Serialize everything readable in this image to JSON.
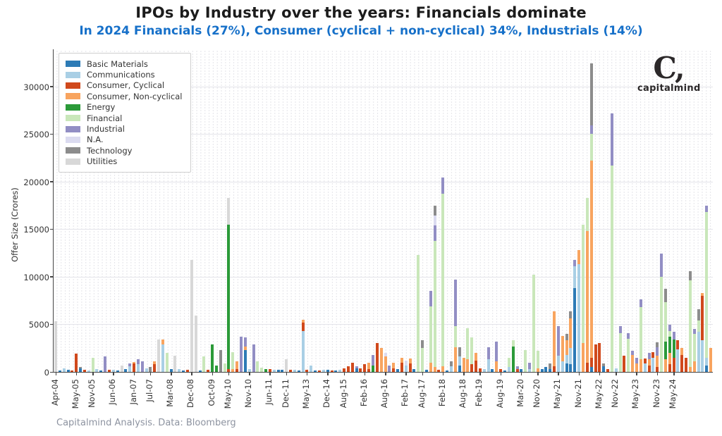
{
  "header": {
    "title": "IPOs by Industry over the years: Financials dominate",
    "subtitle": "In 2024 Financials (27%), Consumer (cyclical + non-cyclical) 34%, Industrials (14%)"
  },
  "logo": {
    "mark": "C,",
    "word": "capitalmind"
  },
  "footer": {
    "credit": "Capitalmind Analysis. Data: Bloomberg"
  },
  "chart_data": {
    "type": "bar",
    "stacked": true,
    "title": "IPOs by Industry over the years: Financials dominate",
    "subtitle": "In 2024 Financials (27%), Consumer (cyclical + non-cyclical) 34%, Industrials (14%)",
    "xlabel": "",
    "ylabel": "Offer Size (Crores)",
    "ylim": [
      0,
      33900
    ],
    "yticks": [
      0,
      5000,
      10000,
      15000,
      20000,
      25000,
      30000
    ],
    "grid": "dotted",
    "legend_position": "upper-left",
    "legend": [
      {
        "key": "BM",
        "label": "Basic Materials",
        "color": "#2d7bb6"
      },
      {
        "key": "CM",
        "label": "Communications",
        "color": "#a9cfe5"
      },
      {
        "key": "CC",
        "label": "Consumer, Cyclical",
        "color": "#d0491c"
      },
      {
        "key": "CN",
        "label": "Consumer, Non-cyclical",
        "color": "#f8a45f"
      },
      {
        "key": "EN",
        "label": "Energy",
        "color": "#2b9a39"
      },
      {
        "key": "FN",
        "label": "Financial",
        "color": "#c9e7ba"
      },
      {
        "key": "IN",
        "label": "Industrial",
        "color": "#928ec4"
      },
      {
        "key": "NA",
        "label": "N.A.",
        "color": "#dbdbf0"
      },
      {
        "key": "TC",
        "label": "Technology",
        "color": "#8c8c8c"
      },
      {
        "key": "UT",
        "label": "Utilities",
        "color": "#d8d8d8"
      }
    ],
    "n_slots": 160,
    "x_tick_labels": [
      "Apr-04",
      "May-05",
      "Nov-05",
      "Jun-06",
      "Jan-07",
      "Jul-07",
      "Mar-08",
      "Dec-08",
      "Oct-09",
      "May-10",
      "Nov-10",
      "Jun-11",
      "Dec-11",
      "May-13",
      "Dec-14",
      "Aug-15",
      "Feb-16",
      "Aug-16",
      "Feb-17",
      "Aug-17",
      "Feb-18",
      "Aug-18",
      "Feb-19",
      "Aug-19",
      "Mar-20",
      "Nov-20",
      "May-21",
      "Nov-21",
      "May-22",
      "Nov-22",
      "May-23",
      "Nov-23",
      "May-24"
    ],
    "x_tick_indices": [
      0,
      5,
      9,
      14,
      19,
      23,
      28,
      33,
      38,
      42,
      47,
      52,
      56,
      61,
      66,
      70,
      75,
      80,
      85,
      89,
      94,
      99,
      103,
      108,
      113,
      117,
      122,
      127,
      132,
      136,
      141,
      146,
      150
    ],
    "bars": [
      [
        [
          "UT",
          5300
        ]
      ],
      [
        [
          "BM",
          150
        ]
      ],
      [
        [
          "CM",
          400
        ]
      ],
      [
        [
          "BM",
          200
        ]
      ],
      [
        [
          "CC",
          150
        ]
      ],
      [
        [
          "CC",
          1900
        ]
      ],
      [
        [
          "BM",
          400
        ],
        [
          "TC",
          150
        ]
      ],
      [
        [
          "CC",
          200
        ]
      ],
      [
        [
          "CM",
          150
        ]
      ],
      [
        [
          "FN",
          1500
        ]
      ],
      [
        [
          "CM",
          300
        ]
      ],
      [
        [
          "BM",
          150
        ]
      ],
      [
        [
          "IN",
          1600
        ]
      ],
      [
        [
          "CC",
          250
        ]
      ],
      [
        [
          "CM",
          200
        ]
      ],
      [
        [
          "BM",
          150
        ]
      ],
      [
        [
          "UT",
          700
        ]
      ],
      [
        [
          "BM",
          300
        ]
      ],
      [
        [
          "CM",
          600
        ],
        [
          "IN",
          300
        ]
      ],
      [
        [
          "CC",
          900
        ],
        [
          "CN",
          150
        ]
      ],
      [
        [
          "CM",
          800
        ],
        [
          "IN",
          500
        ]
      ],
      [
        [
          "IN",
          1100
        ]
      ],
      [
        [
          "CM",
          400
        ]
      ],
      [
        [
          "TC",
          500
        ]
      ],
      [
        [
          "CC",
          800
        ],
        [
          "CN",
          300
        ]
      ],
      [
        [
          "UT",
          3400
        ]
      ],
      [
        [
          "CM",
          2900
        ],
        [
          "CN",
          500
        ]
      ],
      [
        [
          "FN",
          2000
        ]
      ],
      [
        [
          "BM",
          300
        ]
      ],
      [
        [
          "UT",
          1700
        ]
      ],
      [
        [
          "CM",
          300
        ]
      ],
      [
        [
          "BM",
          150
        ]
      ],
      [
        [
          "CC",
          200
        ]
      ],
      [
        [
          "UT",
          11800
        ]
      ],
      [
        [
          "UT",
          5900
        ]
      ],
      [
        [
          "BM",
          150
        ]
      ],
      [
        [
          "FN",
          1600
        ]
      ],
      [
        [
          "CC",
          200
        ]
      ],
      [
        [
          "EN",
          2900
        ]
      ],
      [
        [
          "EN",
          700
        ]
      ],
      [
        [
          "TC",
          2300
        ]
      ],
      [
        [
          "FN",
          900
        ]
      ],
      [
        [
          "CC",
          300
        ],
        [
          "EN",
          15200
        ],
        [
          "UT",
          2800
        ]
      ],
      [
        [
          "CN",
          300
        ],
        [
          "FN",
          1800
        ]
      ],
      [
        [
          "CC",
          300
        ],
        [
          "CN",
          800
        ]
      ],
      [
        [
          "IN",
          3700
        ]
      ],
      [
        [
          "BM",
          2300
        ],
        [
          "CN",
          400
        ],
        [
          "IN",
          900
        ]
      ],
      [
        [
          "CM",
          300
        ]
      ],
      [
        [
          "IN",
          2900
        ]
      ],
      [
        [
          "FN",
          1100
        ]
      ],
      [
        [
          "FN",
          450
        ]
      ],
      [
        [
          "EN",
          300
        ]
      ],
      [
        [
          "CC",
          300
        ]
      ],
      [
        [
          "CM",
          250
        ]
      ],
      [
        [
          "BM",
          200
        ]
      ],
      [
        [
          "BM",
          200
        ]
      ],
      [
        [
          "UT",
          1300
        ]
      ],
      [
        [
          "CC",
          250
        ]
      ],
      [
        [
          "CM",
          250
        ]
      ],
      [
        [
          "BM",
          150
        ]
      ],
      [
        [
          "CM",
          4300
        ],
        [
          "CC",
          900
        ],
        [
          "CN",
          300
        ]
      ],
      [
        [
          "CC",
          200
        ]
      ],
      [
        [
          "CM",
          700
        ]
      ],
      [
        [
          "BM",
          150
        ]
      ],
      [
        [
          "CC",
          150
        ]
      ],
      [
        [
          "CM",
          250
        ]
      ],
      [
        [
          "BM",
          200
        ]
      ],
      [
        [
          "CC",
          150
        ]
      ],
      [
        [
          "BM",
          150
        ]
      ],
      [
        [
          "CM",
          200
        ]
      ],
      [
        [
          "CC",
          350
        ]
      ],
      [
        [
          "CC",
          600
        ]
      ],
      [
        [
          "CC",
          1000
        ]
      ],
      [
        [
          "BM",
          400
        ],
        [
          "IN",
          200
        ]
      ],
      [
        [
          "CC",
          400
        ]
      ],
      [
        [
          "CC",
          800
        ]
      ],
      [
        [
          "CC",
          300
        ],
        [
          "CN",
          700
        ]
      ],
      [
        [
          "EN",
          700
        ],
        [
          "IN",
          1100
        ]
      ],
      [
        [
          "CC",
          3000
        ]
      ],
      [
        [
          "CN",
          2500
        ]
      ],
      [
        [
          "CN",
          1600
        ],
        [
          "NA",
          400
        ]
      ],
      [
        [
          "IN",
          700
        ]
      ],
      [
        [
          "CC",
          400
        ],
        [
          "CN",
          600
        ]
      ],
      [
        [
          "BM",
          300
        ]
      ],
      [
        [
          "CC",
          1000
        ],
        [
          "CN",
          500
        ]
      ],
      [
        [
          "CM",
          700
        ],
        [
          "NA",
          500
        ]
      ],
      [
        [
          "CC",
          900
        ],
        [
          "CN",
          500
        ]
      ],
      [
        [
          "BM",
          300
        ]
      ],
      [
        [
          "FN",
          12300
        ]
      ],
      [
        [
          "FN",
          2500
        ],
        [
          "TC",
          800
        ]
      ],
      [
        [
          "BM",
          200
        ]
      ],
      [
        [
          "CN",
          1000
        ],
        [
          "FN",
          5900
        ],
        [
          "IN",
          1600
        ]
      ],
      [
        [
          "CN",
          500
        ],
        [
          "FN",
          13300
        ],
        [
          "IN",
          1600
        ],
        [
          "NA",
          1000
        ],
        [
          "TC",
          1100
        ]
      ],
      [
        [
          "CC",
          200
        ]
      ],
      [
        [
          "CN",
          600
        ],
        [
          "FN",
          18100
        ],
        [
          "IN",
          1700
        ]
      ],
      [
        [
          "BM",
          150
        ]
      ],
      [
        [
          "CM",
          600
        ],
        [
          "TC",
          500
        ]
      ],
      [
        [
          "CN",
          2600
        ],
        [
          "FN",
          2200
        ],
        [
          "IN",
          4900
        ]
      ],
      [
        [
          "BM",
          700
        ],
        [
          "CM",
          900
        ],
        [
          "TC",
          1000
        ]
      ],
      [
        [
          "CN",
          1500
        ]
      ],
      [
        [
          "CN",
          1300
        ],
        [
          "FN",
          3300
        ]
      ],
      [
        [
          "CC",
          800
        ],
        [
          "FN",
          2800
        ]
      ],
      [
        [
          "CC",
          1200
        ],
        [
          "CN",
          800
        ]
      ],
      [
        [
          "CC",
          400
        ]
      ],
      [
        [
          "CM",
          300
        ]
      ],
      [
        [
          "CM",
          1300
        ],
        [
          "IN",
          1300
        ]
      ],
      [
        [
          "BM",
          300
        ]
      ],
      [
        [
          "CN",
          1100
        ],
        [
          "IN",
          2100
        ]
      ],
      [
        [
          "CC",
          300
        ]
      ],
      [
        [
          "BM",
          150
        ]
      ],
      [
        [
          "CM",
          500
        ],
        [
          "FN",
          1000
        ]
      ],
      [
        [
          "EN",
          2700
        ],
        [
          "FN",
          600
        ]
      ],
      [
        [
          "CC",
          300
        ],
        [
          "IN",
          300
        ]
      ],
      [
        [
          "BM",
          300
        ]
      ],
      [
        [
          "FN",
          2300
        ]
      ],
      [
        [
          "CM",
          300
        ],
        [
          "IN",
          700
        ]
      ],
      [
        [
          "FN",
          10200
        ]
      ],
      [
        [
          "CN",
          400
        ],
        [
          "FN",
          1800
        ]
      ],
      [
        [
          "BM",
          300
        ]
      ],
      [
        [
          "BM",
          500
        ]
      ],
      [
        [
          "BM",
          300
        ],
        [
          "TC",
          600
        ]
      ],
      [
        [
          "CC",
          600
        ],
        [
          "CN",
          5800
        ]
      ],
      [
        [
          "CM",
          1700
        ],
        [
          "IN",
          3100
        ]
      ],
      [
        [
          "CM",
          1100
        ],
        [
          "CN",
          2700
        ]
      ],
      [
        [
          "BM",
          900
        ],
        [
          "CM",
          900
        ],
        [
          "CN",
          1500
        ],
        [
          "TC",
          700
        ]
      ],
      [
        [
          "BM",
          800
        ],
        [
          "CM",
          1700
        ],
        [
          "CN",
          3100
        ],
        [
          "TC",
          800
        ]
      ],
      [
        [
          "BM",
          8800
        ],
        [
          "CM",
          2300
        ],
        [
          "IN",
          700
        ]
      ],
      [
        [
          "CM",
          11300
        ],
        [
          "CN",
          1500
        ]
      ],
      [
        [
          "CN",
          3000
        ],
        [
          "FN",
          12500
        ]
      ],
      [
        [
          "CC",
          1000
        ],
        [
          "CN",
          13800
        ],
        [
          "FN",
          3500
        ]
      ],
      [
        [
          "BM",
          500
        ],
        [
          "CC",
          1000
        ],
        [
          "CN",
          20700
        ],
        [
          "FN",
          2800
        ],
        [
          "IN",
          900
        ],
        [
          "TC",
          6500
        ]
      ],
      [
        [
          "CC",
          2900
        ]
      ],
      [
        [
          "CC",
          3000
        ]
      ],
      [
        [
          "BM",
          600
        ],
        [
          "TC",
          300
        ]
      ],
      [
        [
          "CC",
          300
        ]
      ],
      [
        [
          "FN",
          21700
        ],
        [
          "IN",
          5500
        ]
      ],
      [
        [
          "CM",
          400
        ]
      ],
      [
        [
          "FN",
          4100
        ],
        [
          "IN",
          700
        ]
      ],
      [
        [
          "CC",
          1700
        ]
      ],
      [
        [
          "FN",
          3500
        ],
        [
          "IN",
          600
        ]
      ],
      [
        [
          "CN",
          1800
        ],
        [
          "IN",
          400
        ]
      ],
      [
        [
          "CN",
          900
        ],
        [
          "IN",
          600
        ]
      ],
      [
        [
          "CN",
          1300
        ],
        [
          "FN",
          5500
        ],
        [
          "IN",
          800
        ]
      ],
      [
        [
          "CM",
          900
        ],
        [
          "CC",
          500
        ]
      ],
      [
        [
          "CC",
          700
        ],
        [
          "CN",
          600
        ],
        [
          "IN",
          700
        ]
      ],
      [
        [
          "CM",
          1500
        ],
        [
          "CC",
          600
        ]
      ],
      [
        [
          "CC",
          500
        ],
        [
          "CN",
          1200
        ],
        [
          "IN",
          900
        ],
        [
          "TC",
          500
        ]
      ],
      [
        [
          "FN",
          10000
        ],
        [
          "IN",
          2400
        ]
      ],
      [
        [
          "CN",
          1300
        ],
        [
          "EN",
          1900
        ],
        [
          "FN",
          4100
        ],
        [
          "TC",
          1400
        ]
      ],
      [
        [
          "CC",
          800
        ],
        [
          "CN",
          1200
        ],
        [
          "EN",
          1700
        ],
        [
          "FN",
          600
        ],
        [
          "IN",
          700
        ]
      ],
      [
        [
          "CC",
          1500
        ],
        [
          "EN",
          1900
        ],
        [
          "IN",
          800
        ]
      ],
      [
        [
          "CM",
          2400
        ],
        [
          "CC",
          900
        ]
      ],
      [
        [
          "CC",
          1800
        ],
        [
          "CN",
          700
        ]
      ],
      [
        [
          "CC",
          1500
        ]
      ],
      [
        [
          "CN",
          500
        ],
        [
          "FN",
          9100
        ],
        [
          "TC",
          1000
        ]
      ],
      [
        [
          "CN",
          1100
        ],
        [
          "FN",
          2900
        ],
        [
          "IN",
          500
        ]
      ],
      [
        [
          "CM",
          4200
        ],
        [
          "FN",
          1200
        ],
        [
          "TC",
          1200
        ]
      ],
      [
        [
          "CM",
          3300
        ],
        [
          "CC",
          4700
        ],
        [
          "CN",
          300
        ]
      ],
      [
        [
          "BM",
          700
        ],
        [
          "CM",
          800
        ],
        [
          "FN",
          15300
        ],
        [
          "IN",
          700
        ]
      ],
      [
        [
          "CN",
          2500
        ]
      ]
    ]
  }
}
